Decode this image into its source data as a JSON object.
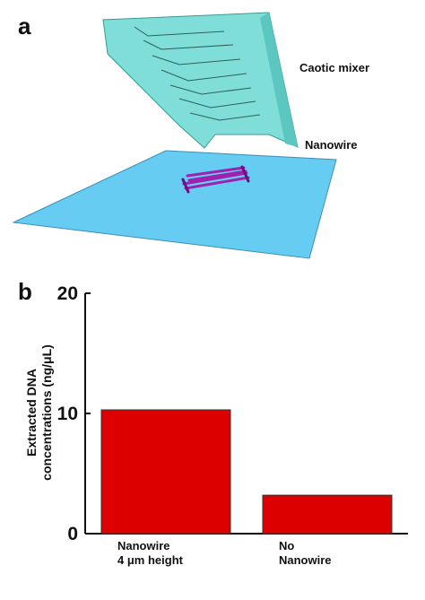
{
  "panels": {
    "a": "a",
    "b": "b"
  },
  "diagram": {
    "labels": [
      "Caotic mixer",
      "Nanowire"
    ]
  },
  "chart_data": {
    "type": "bar",
    "y_label": "Extracted DNA\nconcentrations (ng/μL)",
    "categories": [
      "Nanowire\n4 μm height",
      "No\nNanowire"
    ],
    "values": [
      10.3,
      3.2
    ],
    "color": "#dd0000",
    "ylim": [
      0,
      20
    ],
    "yticks": [
      0,
      10,
      20
    ]
  }
}
